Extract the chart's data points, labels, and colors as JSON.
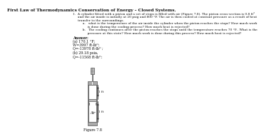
{
  "title": "First Law of Thermodynamics Conservation of Energy – Closed Systems.",
  "line1": "1.  A cylinder fitted with a piston and a set of stops is filled with air (Figure 7.8). The piston cross-section is 0.8 ft²",
  "line2": "     and the air inside is initially at 20 psig and 800 °F. The air is then cooled at constant pressure as a result of heat",
  "line3": "     transfer to the surroundings.",
  "line4": "          a.   what is the temperature of the air inside the cylinder when the piston reaches the stops? How much work",
  "line5": "               is done during the cooling process? How much heat is rejected?",
  "line6": "          b.   The cooling continues after the piston reaches the stops until the temperature reaches 70 °F.. What is the",
  "line7": "               pressure at this state? How much work is done during this process? How much heat is rejected?",
  "answer_label": "Answer:",
  "ans_a1": "(a) 170.1 °F;",
  "ans_a2": "W=3997 ft-lbᴼ;",
  "ans_a3": "Q=-13978 ft-lbᴼ ;",
  "ans_b1": "(b) 29.18 psia,",
  "ans_b2": "Q=-11568 ft-lbᴼ;",
  "figure_label": "Figure 7.8",
  "label_ft_upper": "1 ft",
  "label_ft_lower": "1 ft",
  "label_air": "Air",
  "bg_color": "#ffffff",
  "text_color": "#111111",
  "title_fontsize": 4.2,
  "body_fontsize": 3.2,
  "answer_fontsize": 3.5,
  "fig_fontsize": 3.0,
  "wall_color": "#aaaaaa",
  "wall_edge": "#555555",
  "piston_color": "#bbbbbb",
  "grid_color": "#777777"
}
